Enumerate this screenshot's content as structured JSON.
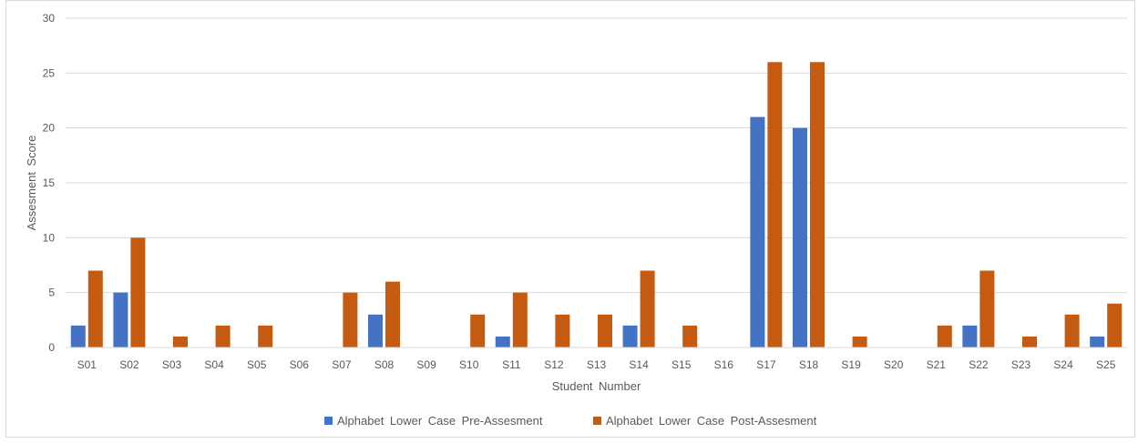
{
  "chart_data": {
    "type": "bar",
    "title": "",
    "xlabel": "Student Number",
    "ylabel": "Assesment Score",
    "ylim": [
      0,
      30
    ],
    "yticks": [
      0,
      5,
      10,
      15,
      20,
      25,
      30
    ],
    "grid": true,
    "legend_position": "bottom",
    "categories": [
      "S01",
      "S02",
      "S03",
      "S04",
      "S05",
      "S06",
      "S07",
      "S08",
      "S09",
      "S10",
      "S11",
      "S12",
      "S13",
      "S14",
      "S15",
      "S16",
      "S17",
      "S18",
      "S19",
      "S20",
      "S21",
      "S22",
      "S23",
      "S24",
      "S25"
    ],
    "series": [
      {
        "name": "Alphabet Lower Case Pre-Assesment",
        "color": "#4472C4",
        "values": [
          2,
          5,
          0,
          0,
          0,
          0,
          0,
          3,
          0,
          0,
          1,
          0,
          0,
          2,
          0,
          0,
          21,
          20,
          0,
          0,
          0,
          2,
          0,
          0,
          1
        ]
      },
      {
        "name": "Alphabet Lower Case Post-Assesment",
        "color": "#C55A11",
        "values": [
          7,
          10,
          1,
          2,
          2,
          0,
          5,
          6,
          0,
          3,
          5,
          3,
          3,
          7,
          2,
          0,
          26,
          26,
          1,
          0,
          2,
          7,
          1,
          3,
          4
        ]
      }
    ]
  }
}
